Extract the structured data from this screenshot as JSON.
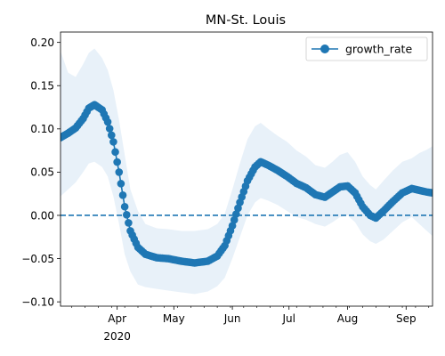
{
  "chart_data": {
    "type": "line",
    "title": "MN-St. Louis",
    "xlabel": "",
    "ylabel": "",
    "x_start": "2020-03-02",
    "x_end": "2020-09-15",
    "ylim": [
      -0.105,
      0.212
    ],
    "y_ticks": [
      {
        "value": -0.1,
        "label": "−0.10"
      },
      {
        "value": -0.05,
        "label": "−0.05"
      },
      {
        "value": 0.0,
        "label": "0.00"
      },
      {
        "value": 0.05,
        "label": "0.05"
      },
      {
        "value": 0.1,
        "label": "0.10"
      },
      {
        "value": 0.15,
        "label": "0.15"
      },
      {
        "value": 0.2,
        "label": "0.20"
      }
    ],
    "x_ticks": [
      {
        "date": "2020-04-01",
        "label": "Apr",
        "sublabel": "2020"
      },
      {
        "date": "2020-05-01",
        "label": "May",
        "sublabel": ""
      },
      {
        "date": "2020-06-01",
        "label": "Jun",
        "sublabel": ""
      },
      {
        "date": "2020-07-01",
        "label": "Jul",
        "sublabel": ""
      },
      {
        "date": "2020-08-01",
        "label": "Aug",
        "sublabel": ""
      },
      {
        "date": "2020-09-01",
        "label": "Sep",
        "sublabel": ""
      }
    ],
    "legend": {
      "position": "top-right",
      "entries": [
        "growth_rate"
      ]
    },
    "colors": {
      "line": "#1f77b4",
      "band": "#dbe9f6"
    },
    "reference_line": {
      "y": 0.0,
      "style": "dashed"
    },
    "series": [
      {
        "name": "growth_rate",
        "points": [
          {
            "x": "2020-03-02",
            "y": 0.09,
            "lo": 0.022,
            "hi": 0.19
          },
          {
            "x": "2020-03-06",
            "y": 0.095,
            "lo": 0.03,
            "hi": 0.165
          },
          {
            "x": "2020-03-10",
            "y": 0.101,
            "lo": 0.038,
            "hi": 0.16
          },
          {
            "x": "2020-03-14",
            "y": 0.112,
            "lo": 0.05,
            "hi": 0.175
          },
          {
            "x": "2020-03-17",
            "y": 0.124,
            "lo": 0.06,
            "hi": 0.188
          },
          {
            "x": "2020-03-20",
            "y": 0.128,
            "lo": 0.062,
            "hi": 0.193
          },
          {
            "x": "2020-03-24",
            "y": 0.122,
            "lo": 0.056,
            "hi": 0.182
          },
          {
            "x": "2020-03-27",
            "y": 0.108,
            "lo": 0.045,
            "hi": 0.168
          },
          {
            "x": "2020-03-30",
            "y": 0.085,
            "lo": 0.022,
            "hi": 0.145
          },
          {
            "x": "2020-04-02",
            "y": 0.05,
            "lo": -0.01,
            "hi": 0.11
          },
          {
            "x": "2020-04-05",
            "y": 0.01,
            "lo": -0.045,
            "hi": 0.07
          },
          {
            "x": "2020-04-08",
            "y": -0.018,
            "lo": -0.065,
            "hi": 0.03
          },
          {
            "x": "2020-04-12",
            "y": -0.037,
            "lo": -0.08,
            "hi": 0.005
          },
          {
            "x": "2020-04-16",
            "y": -0.045,
            "lo": -0.083,
            "hi": -0.01
          },
          {
            "x": "2020-04-22",
            "y": -0.049,
            "lo": -0.085,
            "hi": -0.015
          },
          {
            "x": "2020-04-28",
            "y": -0.05,
            "lo": -0.087,
            "hi": -0.016
          },
          {
            "x": "2020-05-05",
            "y": -0.053,
            "lo": -0.089,
            "hi": -0.018
          },
          {
            "x": "2020-05-12",
            "y": -0.055,
            "lo": -0.091,
            "hi": -0.018
          },
          {
            "x": "2020-05-19",
            "y": -0.053,
            "lo": -0.088,
            "hi": -0.016
          },
          {
            "x": "2020-05-24",
            "y": -0.047,
            "lo": -0.082,
            "hi": -0.01
          },
          {
            "x": "2020-05-28",
            "y": -0.035,
            "lo": -0.072,
            "hi": 0.002
          },
          {
            "x": "2020-06-01",
            "y": -0.012,
            "lo": -0.05,
            "hi": 0.03
          },
          {
            "x": "2020-06-05",
            "y": 0.015,
            "lo": -0.025,
            "hi": 0.06
          },
          {
            "x": "2020-06-09",
            "y": 0.04,
            "lo": 0.0,
            "hi": 0.088
          },
          {
            "x": "2020-06-13",
            "y": 0.056,
            "lo": 0.015,
            "hi": 0.103
          },
          {
            "x": "2020-06-16",
            "y": 0.062,
            "lo": 0.02,
            "hi": 0.107
          },
          {
            "x": "2020-06-20",
            "y": 0.058,
            "lo": 0.017,
            "hi": 0.1
          },
          {
            "x": "2020-06-25",
            "y": 0.052,
            "lo": 0.012,
            "hi": 0.092
          },
          {
            "x": "2020-06-30",
            "y": 0.045,
            "lo": 0.005,
            "hi": 0.085
          },
          {
            "x": "2020-07-05",
            "y": 0.037,
            "lo": -0.002,
            "hi": 0.075
          },
          {
            "x": "2020-07-10",
            "y": 0.032,
            "lo": -0.005,
            "hi": 0.068
          },
          {
            "x": "2020-07-15",
            "y": 0.024,
            "lo": -0.01,
            "hi": 0.058
          },
          {
            "x": "2020-07-20",
            "y": 0.021,
            "lo": -0.013,
            "hi": 0.055
          },
          {
            "x": "2020-07-24",
            "y": 0.027,
            "lo": -0.008,
            "hi": 0.062
          },
          {
            "x": "2020-07-28",
            "y": 0.033,
            "lo": -0.002,
            "hi": 0.07
          },
          {
            "x": "2020-08-01",
            "y": 0.034,
            "lo": 0.0,
            "hi": 0.073
          },
          {
            "x": "2020-08-05",
            "y": 0.026,
            "lo": -0.008,
            "hi": 0.062
          },
          {
            "x": "2020-08-09",
            "y": 0.01,
            "lo": -0.022,
            "hi": 0.045
          },
          {
            "x": "2020-08-13",
            "y": 0.0,
            "lo": -0.03,
            "hi": 0.035
          },
          {
            "x": "2020-08-16",
            "y": -0.003,
            "lo": -0.033,
            "hi": 0.03
          },
          {
            "x": "2020-08-20",
            "y": 0.005,
            "lo": -0.028,
            "hi": 0.04
          },
          {
            "x": "2020-08-25",
            "y": 0.016,
            "lo": -0.018,
            "hi": 0.052
          },
          {
            "x": "2020-08-30",
            "y": 0.026,
            "lo": -0.008,
            "hi": 0.062
          },
          {
            "x": "2020-09-04",
            "y": 0.031,
            "lo": -0.002,
            "hi": 0.066
          },
          {
            "x": "2020-09-08",
            "y": 0.029,
            "lo": -0.01,
            "hi": 0.072
          },
          {
            "x": "2020-09-12",
            "y": 0.027,
            "lo": -0.018,
            "hi": 0.076
          },
          {
            "x": "2020-09-15",
            "y": 0.026,
            "lo": -0.024,
            "hi": 0.08
          }
        ]
      }
    ]
  }
}
